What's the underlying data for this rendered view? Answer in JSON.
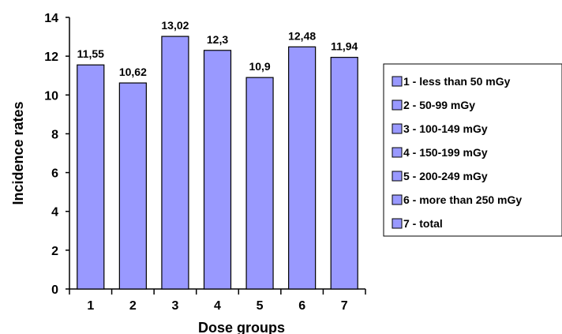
{
  "chart_data": {
    "type": "bar",
    "xlabel": "Dose groups",
    "ylabel": "Incidence rates",
    "categories": [
      "1",
      "2",
      "3",
      "4",
      "5",
      "6",
      "7"
    ],
    "values": [
      11.55,
      10.62,
      13.02,
      12.3,
      10.9,
      12.48,
      11.94
    ],
    "data_labels": [
      "11,55",
      "10,62",
      "13,02",
      "12,3",
      "10,9",
      "12,48",
      "11,94"
    ],
    "ylim": [
      0,
      14
    ],
    "yticks": [
      0,
      2,
      4,
      6,
      8,
      10,
      12,
      14
    ],
    "grid": false,
    "bar_color": "#9999ff",
    "bar_outline": "#000000",
    "legend_position": "right",
    "legend": [
      "1 - less than 50 mGy",
      "2 - 50-99 mGy",
      "3 - 100-149 mGy",
      "4 - 150-199 mGy",
      "5 - 200-249 mGy",
      "6 - more than 250 mGy",
      "7 - total"
    ]
  }
}
